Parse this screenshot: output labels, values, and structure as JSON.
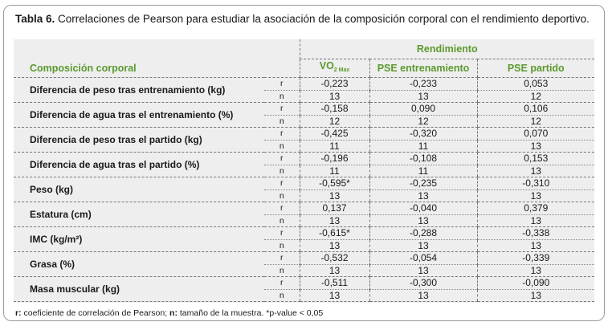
{
  "caption": {
    "label": "Tabla 6.",
    "text": " Correlaciones de Pearson para estudiar la asociación de la composición corporal con el rendimiento deportivo."
  },
  "header": {
    "group": "Rendimiento",
    "composition": "Composición corporal",
    "col1_main": "VO",
    "col1_sub": "2 Max",
    "col2": "PSE entrenamiento",
    "col3": "PSE partido"
  },
  "rows": [
    {
      "label": "Diferencia de peso tras entrenamiento (kg)",
      "r_label": "r",
      "n_label": "n",
      "r": [
        "-0,223",
        "-0,233",
        "0,053"
      ],
      "n": [
        "13",
        "13",
        "12"
      ]
    },
    {
      "label": "Diferencia de agua tras el entrenamiento (%)",
      "r_label": "r",
      "n_label": "n",
      "r": [
        "-0,158",
        "0,090",
        "0,106"
      ],
      "n": [
        "12",
        "12",
        "12"
      ]
    },
    {
      "label": "Diferencia de peso tras el partido (kg)",
      "r_label": "r",
      "n_label": "n",
      "r": [
        "-0,425",
        "-0,320",
        "0,070"
      ],
      "n": [
        "11",
        "11",
        "13"
      ]
    },
    {
      "label": "Diferencia de agua tras el partido (%)",
      "r_label": "r",
      "n_label": "n",
      "r": [
        "-0,196",
        "-0,108",
        "0,153"
      ],
      "n": [
        "11",
        "11",
        "13"
      ]
    },
    {
      "label": "Peso (kg)",
      "r_label": "r",
      "n_label": "n",
      "r": [
        "-0,595*",
        "-0,235",
        "-0,310"
      ],
      "n": [
        "13",
        "13",
        "13"
      ]
    },
    {
      "label": "Estatura (cm)",
      "r_label": "r",
      "n_label": "n",
      "r": [
        "0,137",
        "-0,040",
        "0,379"
      ],
      "n": [
        "13",
        "13",
        "13"
      ]
    },
    {
      "label": "IMC (kg/m²)",
      "r_label": "r",
      "n_label": "n",
      "r": [
        "-0,615*",
        "-0,288",
        "-0,338"
      ],
      "n": [
        "13",
        "13",
        "13"
      ]
    },
    {
      "label": "Grasa (%)",
      "r_label": "r",
      "n_label": "n",
      "r": [
        "-0,532",
        "-0,054",
        "-0,339"
      ],
      "n": [
        "13",
        "13",
        "13"
      ]
    },
    {
      "label": "Masa muscular (kg)",
      "r_label": "r",
      "n_label": "n",
      "r": [
        "-0,511",
        "-0,300",
        "-0,090"
      ],
      "n": [
        "13",
        "13",
        "13"
      ]
    }
  ],
  "footnote": {
    "r_label": "r:",
    "r_text": " coeficiente de correlación de Pearson; ",
    "n_label": "n:",
    "n_text": " tamaño de la muestra. *p-value < 0,05"
  },
  "colors": {
    "accent_green": "#5c9a2e",
    "table_bg": "#eeeeee",
    "border": "#9a9a9a"
  }
}
